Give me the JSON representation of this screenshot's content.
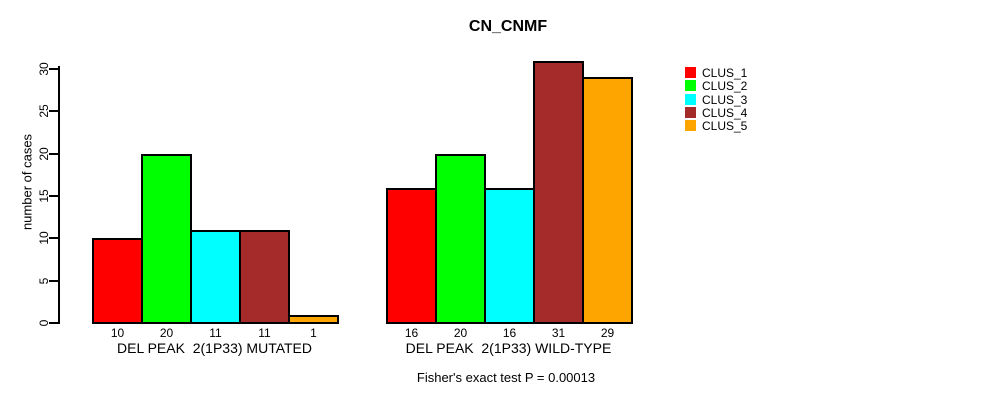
{
  "chart_data": {
    "type": "bar",
    "title": "CN_CNMF",
    "ylabel": "number of cases",
    "ylim": [
      0,
      30
    ],
    "yticks": [
      0,
      5,
      10,
      15,
      20,
      25,
      30
    ],
    "grid": false,
    "legend_position": "right-top",
    "bar_border_color": "#000000",
    "categories": [
      "DEL PEAK  2(1P33) MUTATED",
      "DEL PEAK  2(1P33) WILD-TYPE"
    ],
    "series": [
      {
        "name": "CLUS_1",
        "color": "#FF0000",
        "values": [
          10,
          16
        ]
      },
      {
        "name": "CLUS_2",
        "color": "#00FF00",
        "values": [
          20,
          20
        ]
      },
      {
        "name": "CLUS_3",
        "color": "#00FFFF",
        "values": [
          11,
          16
        ]
      },
      {
        "name": "CLUS_4",
        "color": "#A52A2A",
        "values": [
          11,
          31
        ]
      },
      {
        "name": "CLUS_5",
        "color": "#FFA500",
        "values": [
          1,
          29
        ]
      }
    ],
    "bar_value_labels": true,
    "annotation": "Fisher's exact test P = 0.00013"
  }
}
